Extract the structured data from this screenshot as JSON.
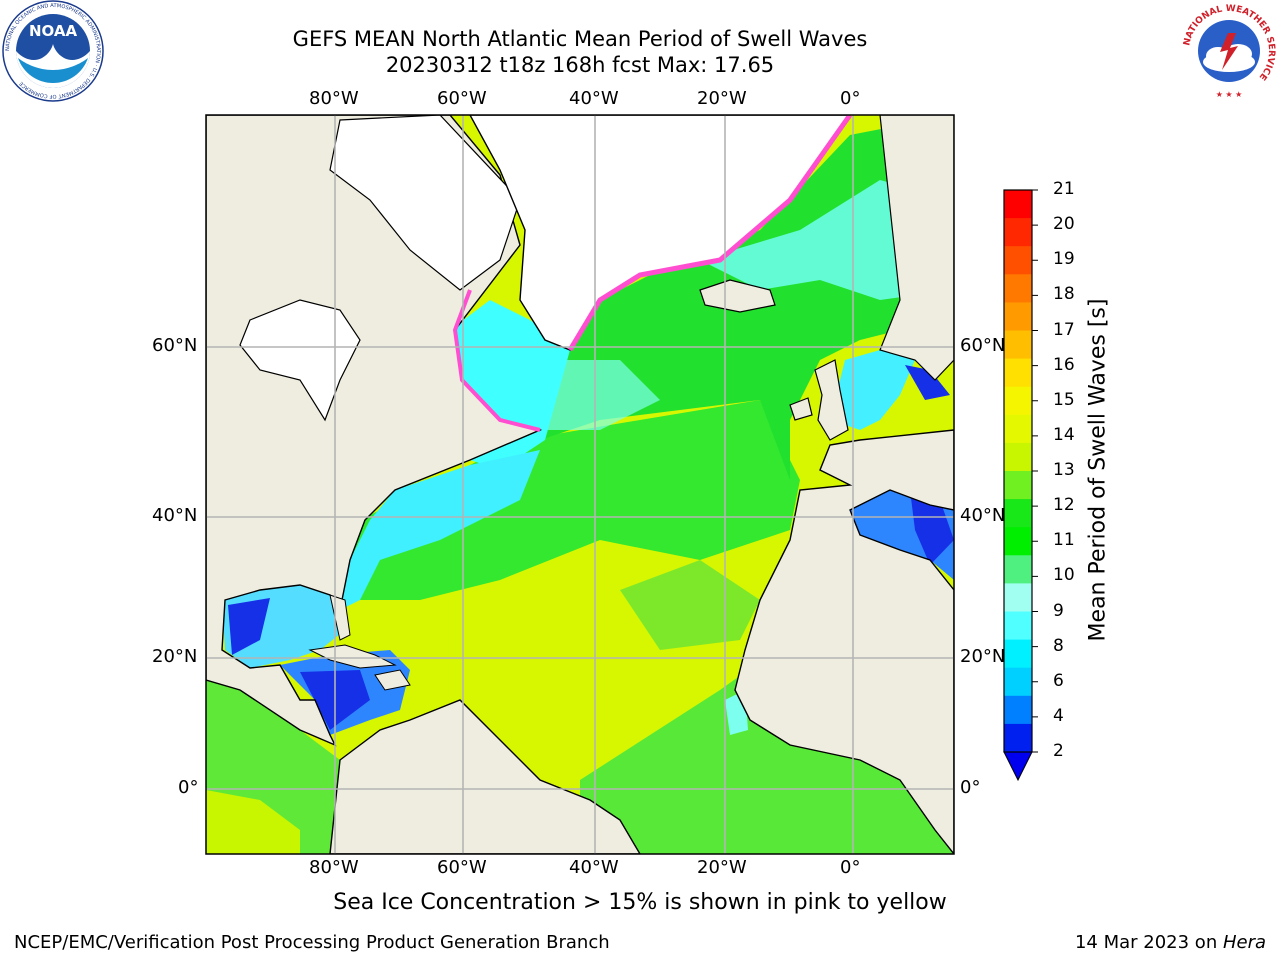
{
  "header": {
    "title_line1": "GEFS MEAN North Atlantic Mean Period of Swell Waves",
    "title_line2": "20230312 t18z 168h fcst   Max: 17.65"
  },
  "logos": {
    "left": "noaa-logo",
    "left_text": "NOAA",
    "left_ring_text": "NATIONAL OCEANIC AND ATMOSPHERIC ADMINISTRATION · U.S. DEPARTMENT OF COMMERCE",
    "right": "nws-logo",
    "right_ring_text": "NATIONAL WEATHER SERVICE"
  },
  "map": {
    "lon_labels": [
      "80°W",
      "60°W",
      "40°W",
      "20°W",
      "0°"
    ],
    "lat_labels": [
      "60°N",
      "40°N",
      "20°N",
      "0°"
    ],
    "colors": {
      "land": "#efeddf",
      "ice_sheet": "#ffffff",
      "grid": "#b4b4b4",
      "coast": "#000000"
    }
  },
  "colorbar": {
    "title": "Mean Period of Swell Waves [s]",
    "ticks": [
      "21",
      "20",
      "19",
      "18",
      "17",
      "16",
      "15",
      "14",
      "13",
      "12",
      "11",
      "10",
      "9",
      "8",
      "6",
      "4",
      "2"
    ],
    "colors": [
      "#ff0000",
      "#ff2800",
      "#ff5000",
      "#ff7800",
      "#ff9a00",
      "#ffbf00",
      "#ffe000",
      "#f5f500",
      "#e4f800",
      "#c8f500",
      "#70f020",
      "#18e818",
      "#00ee00",
      "#50f080",
      "#a0fff0",
      "#50ffff",
      "#00f0ff",
      "#00d0ff",
      "#0080ff",
      "#0020f0"
    ]
  },
  "footer": {
    "note": "Sea Ice Concentration > 15% is shown in pink to yellow",
    "credit": "NCEP/EMC/Verification Post Processing Product Generation Branch",
    "date": "14 Mar 2023 on ",
    "machine": "Hera"
  }
}
